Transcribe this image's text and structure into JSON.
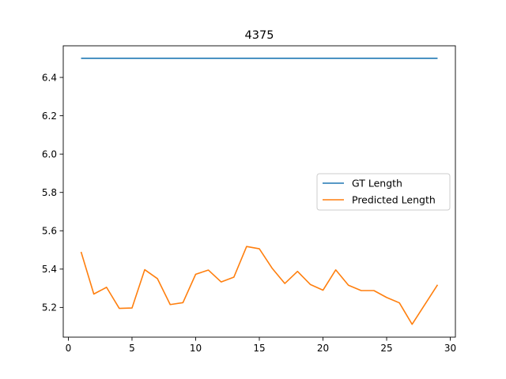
{
  "chart_data": {
    "type": "line",
    "title": "4375",
    "xlabel": "",
    "ylabel": "",
    "xlim": [
      -0.4,
      30.4
    ],
    "ylim": [
      5.045,
      6.565
    ],
    "xticks": [
      0,
      5,
      10,
      15,
      20,
      25,
      30
    ],
    "yticks": [
      5.2,
      5.4,
      5.6,
      5.8,
      6.0,
      6.2,
      6.4
    ],
    "xtick_labels": [
      "0",
      "5",
      "10",
      "15",
      "20",
      "25",
      "30"
    ],
    "ytick_labels": [
      "5.2",
      "5.4",
      "5.6",
      "5.8",
      "6.0",
      "6.2",
      "6.4"
    ],
    "grid": false,
    "legend_position": "center-right",
    "series": [
      {
        "name": "GT Length",
        "color": "#1f77b4",
        "x": [
          1,
          29
        ],
        "y": [
          6.5,
          6.5
        ]
      },
      {
        "name": "Predicted Length",
        "color": "#ff7f0e",
        "x": [
          1,
          2,
          3,
          4,
          5,
          6,
          7,
          8,
          9,
          10,
          11,
          12,
          13,
          14,
          15,
          16,
          17,
          18,
          19,
          20,
          21,
          22,
          23,
          24,
          25,
          26,
          27,
          28,
          29
        ],
        "y": [
          5.49,
          5.27,
          5.305,
          5.195,
          5.197,
          5.397,
          5.35,
          5.215,
          5.225,
          5.373,
          5.395,
          5.333,
          5.358,
          5.518,
          5.506,
          5.405,
          5.325,
          5.388,
          5.32,
          5.29,
          5.396,
          5.316,
          5.288,
          5.288,
          5.252,
          5.224,
          5.112,
          5.215,
          5.318
        ]
      }
    ]
  }
}
